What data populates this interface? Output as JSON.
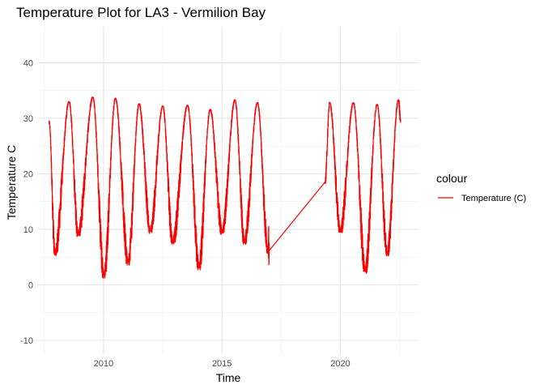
{
  "chart_data": {
    "type": "line",
    "title": "Temperature Plot for LA3 - Vermilion Bay",
    "xlabel": "Time",
    "ylabel": "Temperature C",
    "xlim": [
      2007.2,
      2023.3
    ],
    "ylim": [
      -12.5,
      46.5
    ],
    "x_ticks": [
      2010,
      2015,
      2020
    ],
    "x_tick_labels": [
      "2010",
      "2015",
      "2020"
    ],
    "y_ticks": [
      -10,
      0,
      10,
      20,
      30,
      40
    ],
    "y_tick_labels": [
      "-10",
      "0",
      "10",
      "20",
      "30",
      "40"
    ],
    "grid": true,
    "legend": {
      "title": "colour",
      "position": "right",
      "entries": [
        "Temperature (C)"
      ]
    },
    "series": [
      {
        "name": "Temperature (C)",
        "color": "#ff0000",
        "segments": [
          {
            "x_start": 2007.7,
            "x_end": 2017.0,
            "min_x": [
              2007.95,
              2008.93,
              2010.02,
              2011.04,
              2011.98,
              2012.92,
              2014.03,
              2015.01,
              2015.95,
              2016.95
            ],
            "min_y": [
              5.8,
              9.2,
              1.8,
              4.2,
              9.8,
              7.8,
              3.4,
              9.6,
              7.8,
              6.2
            ],
            "max_x": [
              2007.7,
              2008.55,
              2009.55,
              2010.5,
              2011.5,
              2012.5,
              2013.55,
              2014.5,
              2015.55,
              2016.5
            ],
            "max_y": [
              29.5,
              33.0,
              33.8,
              33.6,
              32.6,
              32.2,
              32.3,
              31.6,
              33.3,
              32.8
            ],
            "start_y": 29.5,
            "end_y": 6.2
          },
          {
            "x_start": 2019.35,
            "x_end": 2022.55,
            "min_x": [
              2020.0,
              2021.05,
              2021.98
            ],
            "min_y": [
              9.8,
              2.8,
              5.8
            ],
            "max_x": [
              2019.55,
              2020.55,
              2021.55,
              2022.45
            ],
            "max_y": [
              32.8,
              32.8,
              32.5,
              33.3
            ],
            "start_y": 18.5,
            "end_y": 29.5
          }
        ],
        "gap_line": {
          "from": [
            2017.0,
            6.2
          ],
          "to": [
            2019.35,
            18.5
          ]
        }
      }
    ]
  }
}
